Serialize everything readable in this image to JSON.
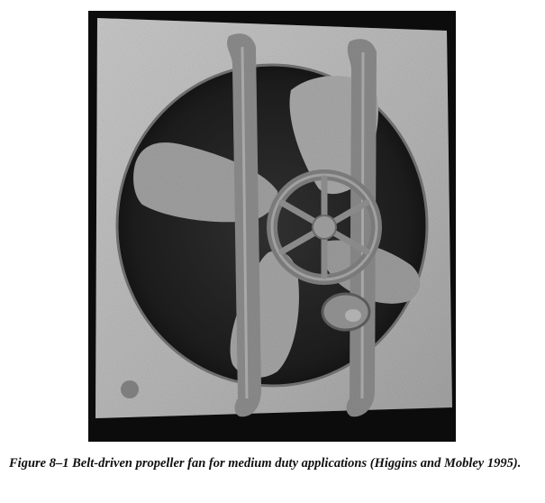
{
  "figure": {
    "caption": "Figure 8–1 Belt-driven propeller fan for medium duty applications (Higgins and Mobley 1995)."
  },
  "colors": {
    "photo_background": "#0c0c0c",
    "panel": "#b9b9b9",
    "blade": "#a3a3a3",
    "opening": "#232323",
    "brace": "#878787"
  },
  "photo": {
    "subject": "belt-driven propeller fan",
    "parts": [
      "square mounting panel",
      "circular fan opening",
      "four propeller blades",
      "two vertical support braces",
      "spoked drive pulley",
      "motor pulley"
    ]
  }
}
